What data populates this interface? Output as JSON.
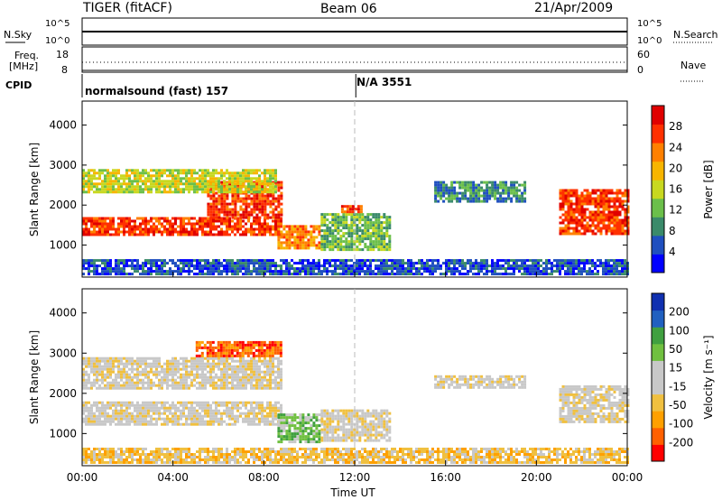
{
  "header": {
    "title": "TIGER (fitACF)",
    "beam": "Beam 06",
    "date": "21/Apr/2009"
  },
  "strips": {
    "nsky": {
      "label": "N.Sky",
      "ticks": [
        "10^5",
        "10^0"
      ],
      "right_label": "N.Search",
      "right_ticks": [
        "10^5",
        "10^0"
      ]
    },
    "freq": {
      "label_line1": "Freq.",
      "label_line2": "[MHz]",
      "ticks": [
        "18",
        "8"
      ],
      "right_label": "Nave",
      "right_ticks": [
        "60",
        "0"
      ]
    },
    "cpid": {
      "label": "CPID",
      "segments": [
        "normalsound (fast) 157",
        "N/A 3551"
      ]
    }
  },
  "chart_data": [
    {
      "type": "heatmap",
      "name": "power",
      "xlabel": "",
      "ylabel": "Slant Range [km]",
      "xlim": [
        0,
        24
      ],
      "ylim": [
        200,
        4600
      ],
      "yticks": [
        1000,
        2000,
        3000,
        4000
      ],
      "colorbar": {
        "label": "Power [dB]",
        "ticks": [
          "28",
          "24",
          "20",
          "16",
          "12",
          "8",
          "4"
        ],
        "colors": [
          "#0000ff",
          "#1f4fbf",
          "#3a8a6a",
          "#6bbf4a",
          "#c8d820",
          "#f7b500",
          "#ff8000",
          "#ff3000",
          "#e00000"
        ]
      },
      "bands": [
        {
          "x0": 0.0,
          "x1": 8.8,
          "y0": 1250,
          "y1": 1700,
          "level": 7
        },
        {
          "x0": 5.5,
          "x1": 8.8,
          "y0": 1700,
          "y1": 2600,
          "level": 7
        },
        {
          "x0": 0.0,
          "x1": 8.5,
          "y0": 2300,
          "y1": 2900,
          "level": 4
        },
        {
          "x0": 8.6,
          "x1": 10.5,
          "y0": 900,
          "y1": 1500,
          "level": 6
        },
        {
          "x0": 10.5,
          "x1": 13.5,
          "y0": 900,
          "y1": 1800,
          "level": 3
        },
        {
          "x0": 11.4,
          "x1": 12.3,
          "y0": 1850,
          "y1": 2000,
          "level": 7
        },
        {
          "x0": 15.5,
          "x1": 19.5,
          "y0": 2100,
          "y1": 2600,
          "level": 2
        },
        {
          "x0": 21.0,
          "x1": 24.0,
          "y0": 1300,
          "y1": 2400,
          "level": 7
        },
        {
          "x0": 0.0,
          "x1": 24.0,
          "y0": 250,
          "y1": 650,
          "level": 1
        }
      ]
    },
    {
      "type": "heatmap",
      "name": "velocity",
      "xlabel": "Time UT",
      "ylabel": "Slant Range [km]",
      "xlim": [
        0,
        24
      ],
      "ylim": [
        200,
        4600
      ],
      "yticks": [
        1000,
        2000,
        3000,
        4000
      ],
      "xticks": [
        "00:00",
        "04:00",
        "08:00",
        "12:00",
        "16:00",
        "20:00",
        "00:00"
      ],
      "colorbar": {
        "label": "Velocity [m s⁻¹]",
        "ticks": [
          "200",
          "100",
          "50",
          "15",
          "-15",
          "-50",
          "-100",
          "-200"
        ],
        "colors": [
          "#ff0000",
          "#ff6000",
          "#ffa000",
          "#f0c040",
          "#c8c8c8",
          "#c8c8c8",
          "#70c040",
          "#40a040",
          "#2060c0",
          "#1030b0"
        ]
      },
      "bands": [
        {
          "x0": 0.0,
          "x1": 8.8,
          "y0": 1200,
          "y1": 1800,
          "level": 4
        },
        {
          "x0": 0.0,
          "x1": 8.8,
          "y0": 2100,
          "y1": 2900,
          "level": 4
        },
        {
          "x0": 5.0,
          "x1": 8.8,
          "y0": 2900,
          "y1": 3300,
          "level": 1
        },
        {
          "x0": 8.6,
          "x1": 10.5,
          "y0": 800,
          "y1": 1500,
          "level": 6
        },
        {
          "x0": 10.5,
          "x1": 13.5,
          "y0": 800,
          "y1": 1600,
          "level": 4
        },
        {
          "x0": 15.5,
          "x1": 19.5,
          "y0": 2150,
          "y1": 2450,
          "level": 4
        },
        {
          "x0": 21.0,
          "x1": 24.0,
          "y0": 1300,
          "y1": 2200,
          "level": 4
        },
        {
          "x0": 0.0,
          "x1": 24.0,
          "y0": 250,
          "y1": 650,
          "level": 3
        }
      ]
    }
  ]
}
